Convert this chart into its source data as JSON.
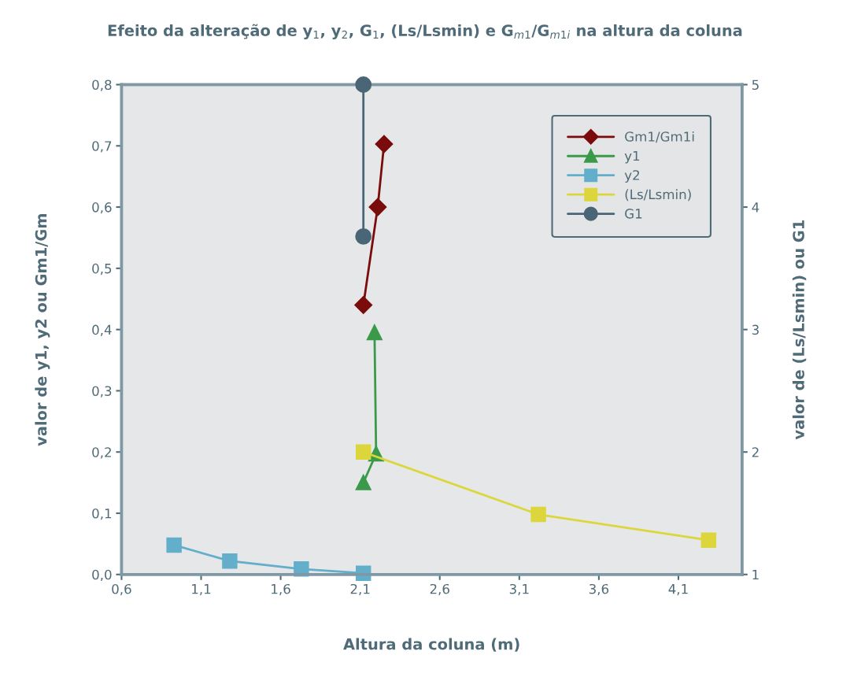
{
  "chart_data": {
    "type": "line",
    "title": "Efeito da alteração de y$_{1}$, y$_{2}$, G$_{1}$, (Ls/Lsmin) e G$_{m1}$/G$_{m1i}$ na altura da coluna",
    "xlabel": "Altura da coluna (m)",
    "ylabel": "valor de y1, y2 ou Gm1/Gm",
    "y2label": "valor de (Ls/Lsmin) ou G1",
    "xlim": [
      0.6,
      4.5
    ],
    "xticks": [
      {
        "value": 0.6,
        "label": "0,6"
      },
      {
        "value": 1.1,
        "label": "1,1"
      },
      {
        "value": 1.6,
        "label": "1,6"
      },
      {
        "value": 2.1,
        "label": "2,1"
      },
      {
        "value": 2.6,
        "label": "2,6"
      },
      {
        "value": 3.1,
        "label": "3,1"
      },
      {
        "value": 3.6,
        "label": "3,6"
      },
      {
        "value": 4.1,
        "label": "4,1"
      }
    ],
    "ylim": [
      0,
      0.8
    ],
    "yticks": [
      {
        "value": 0,
        "label": "0,0"
      },
      {
        "value": 0.1,
        "label": "0,1"
      },
      {
        "value": 0.2,
        "label": "0,2"
      },
      {
        "value": 0.3,
        "label": "0,3"
      },
      {
        "value": 0.4,
        "label": "0,4"
      },
      {
        "value": 0.5,
        "label": "0,5"
      },
      {
        "value": 0.6,
        "label": "0,6"
      },
      {
        "value": 0.7,
        "label": "0,7"
      },
      {
        "value": 0.8,
        "label": "0,8"
      }
    ],
    "y2lim": [
      1,
      5
    ],
    "y2ticks": [
      1,
      2,
      3,
      4,
      5
    ],
    "grid": false,
    "legend": "top right",
    "series": [
      {
        "name": "Gm1/Gm1i",
        "color": "#7a0c0c",
        "marker": "diamond",
        "x": [
          2.12,
          2.21,
          2.25
        ],
        "values": [
          0.44,
          0.6,
          0.703
        ]
      },
      {
        "name": "y1",
        "color": "#3a9a4a",
        "marker": "triangle",
        "x": [
          2.12,
          2.2,
          2.19
        ],
        "values": [
          0.15,
          0.197,
          0.395
        ]
      },
      {
        "name": "y2",
        "color": "#62aecb",
        "marker": "square",
        "x": [
          0.93,
          1.28,
          1.73,
          2.12
        ],
        "values": [
          0.048,
          0.022,
          0.009,
          0.002
        ]
      },
      {
        "name": "(Ls/Lsmin)",
        "color": "#dcd63c",
        "marker": "square",
        "axis": "y2",
        "x": [
          2.12,
          3.22,
          4.29
        ],
        "values": [
          2.0,
          1.49,
          1.28
        ]
      },
      {
        "name": "G1",
        "color": "#4a6676",
        "marker": "circle",
        "axis": "y2",
        "x": [
          2.12,
          2.12
        ],
        "values": [
          5.0,
          3.76
        ]
      }
    ]
  }
}
